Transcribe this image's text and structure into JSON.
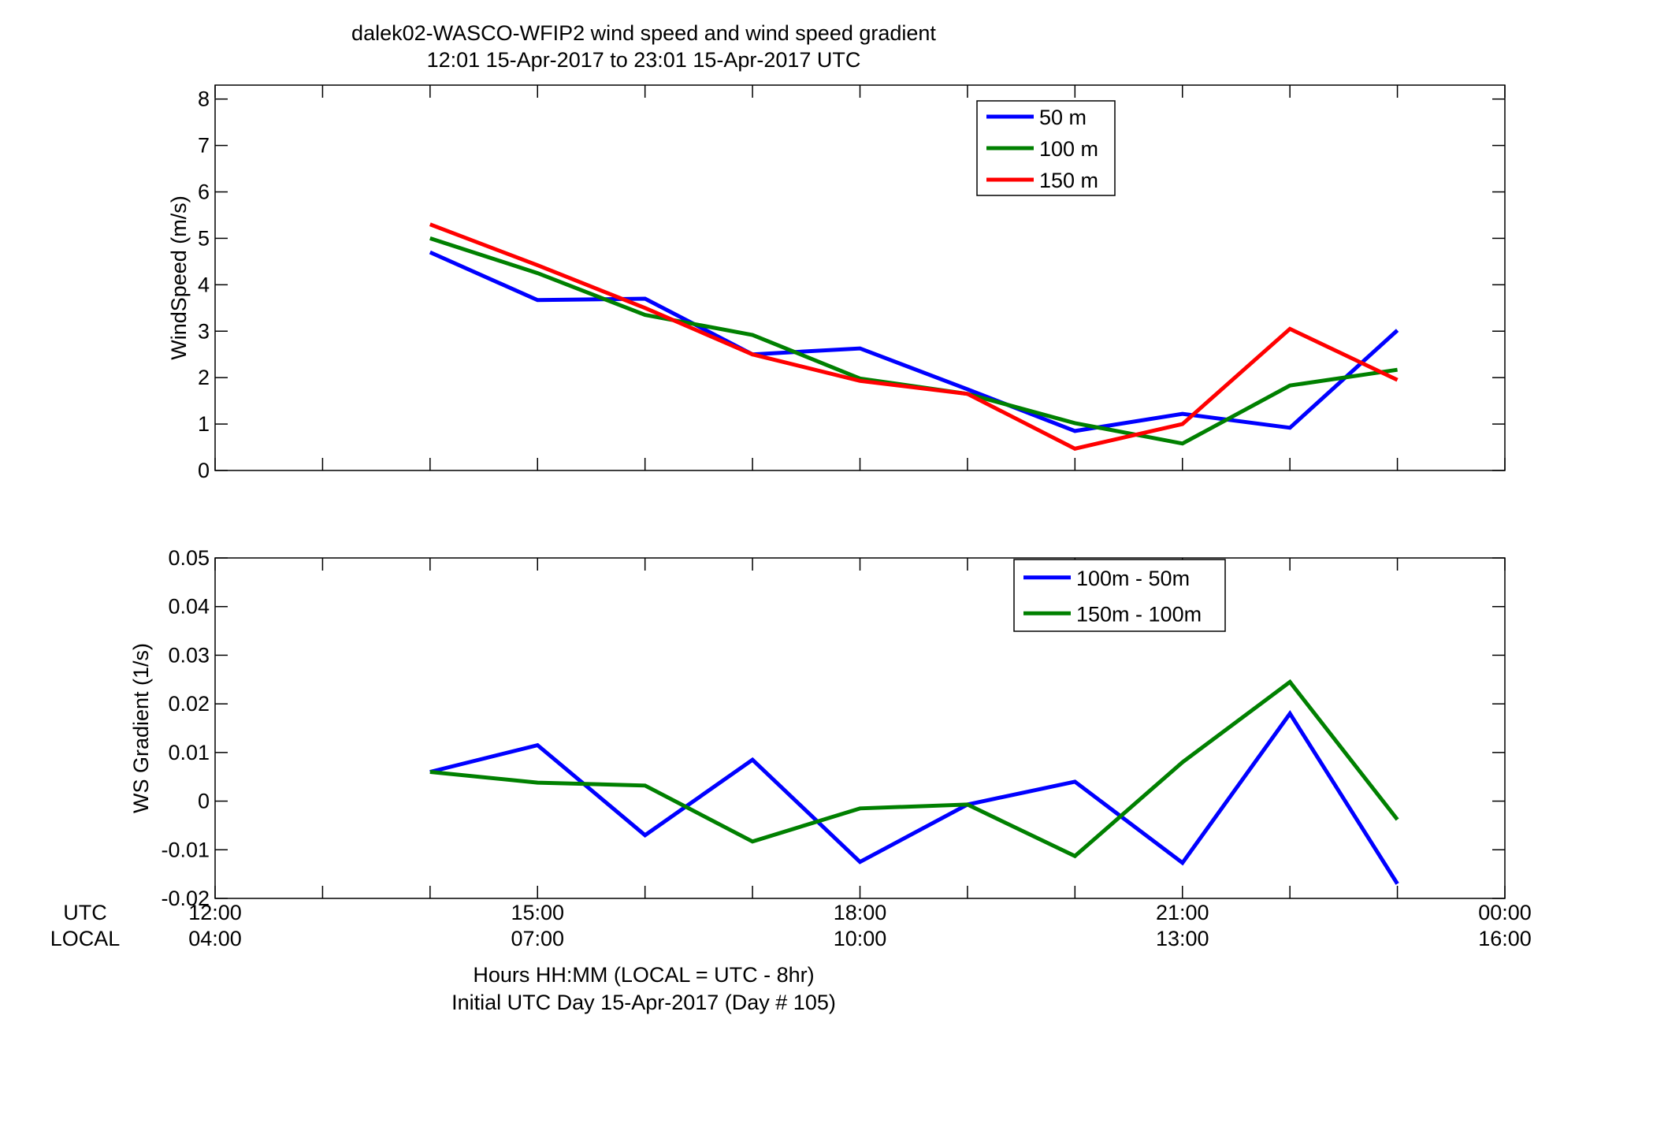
{
  "figure": {
    "title_line1": "dalek02-WASCO-WFIP2  wind speed and wind speed gradient",
    "title_line2": "12:01 15-Apr-2017 to 23:01 15-Apr-2017  UTC",
    "xlabel_line1": "Hours HH:MM  (LOCAL = UTC - 8hr)",
    "xlabel_line2": "Initial UTC Day 15-Apr-2017 (Day # 105)",
    "row_label_utc": "UTC",
    "row_label_local": "LOCAL",
    "x_ticks_utc": [
      "12:00",
      "15:00",
      "18:00",
      "21:00",
      "00:00"
    ],
    "x_ticks_local": [
      "04:00",
      "07:00",
      "10:00",
      "13:00",
      "16:00"
    ]
  },
  "chart_data": [
    {
      "type": "line",
      "ylabel": "WindSpeed (m/s)",
      "xlim": [
        12,
        24
      ],
      "ylim": [
        0,
        8.3
      ],
      "y_ticks": [
        0,
        1,
        2,
        3,
        4,
        5,
        6,
        7,
        8
      ],
      "x_ticks": [
        12,
        13,
        14,
        15,
        16,
        17,
        18,
        19,
        20,
        21,
        22,
        23,
        24
      ],
      "x": [
        14,
        15,
        16,
        17,
        18,
        19,
        20,
        21,
        22,
        23
      ],
      "legend_position": "top-center",
      "series": [
        {
          "name": "50 m",
          "color": "#0000ff",
          "values": [
            4.7,
            3.67,
            3.7,
            2.5,
            2.63,
            1.75,
            0.85,
            1.22,
            0.92,
            3.02
          ]
        },
        {
          "name": "100 m",
          "color": "#008000",
          "values": [
            5.0,
            4.25,
            3.35,
            2.92,
            1.98,
            1.65,
            1.02,
            0.58,
            1.83,
            2.17
          ]
        },
        {
          "name": "150 m",
          "color": "#ff0000",
          "values": [
            5.3,
            4.42,
            3.5,
            2.5,
            1.93,
            1.65,
            0.47,
            1.0,
            3.05,
            1.95
          ]
        }
      ]
    },
    {
      "type": "line",
      "ylabel": "WS Gradient (1/s)",
      "xlim": [
        12,
        24
      ],
      "ylim": [
        -0.02,
        0.05
      ],
      "y_ticks": [
        -0.02,
        -0.01,
        0,
        0.01,
        0.02,
        0.03,
        0.04,
        0.05
      ],
      "y_tick_labels": [
        "-0.02",
        "-0.01",
        "0",
        "0.01",
        "0.02",
        "0.03",
        "0.04",
        "0.05"
      ],
      "x_ticks": [
        12,
        13,
        14,
        15,
        16,
        17,
        18,
        19,
        20,
        21,
        22,
        23,
        24
      ],
      "x": [
        14,
        15,
        16,
        17,
        18,
        19,
        20,
        21,
        22,
        23
      ],
      "legend_position": "top-right",
      "series": [
        {
          "name": "100m - 50m",
          "color": "#0000ff",
          "values": [
            0.006,
            0.0115,
            -0.007,
            0.0085,
            -0.0125,
            -0.0007,
            0.004,
            -0.0127,
            0.018,
            -0.017
          ]
        },
        {
          "name": "150m - 100m",
          "color": "#008000",
          "values": [
            0.006,
            0.0038,
            0.0032,
            -0.0083,
            -0.0015,
            -0.0007,
            -0.0113,
            0.008,
            0.0245,
            -0.0038
          ]
        }
      ]
    }
  ]
}
